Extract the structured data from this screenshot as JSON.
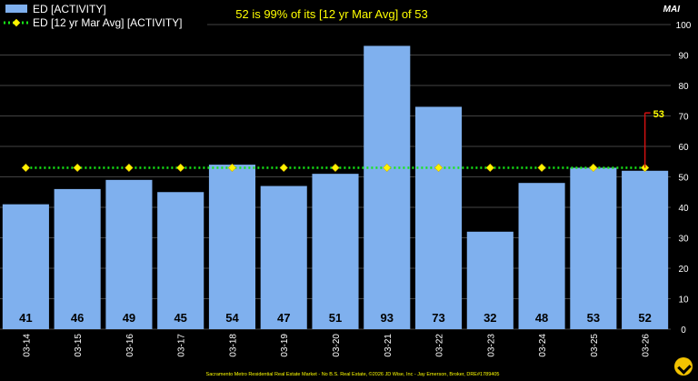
{
  "header": {
    "title": "52 is 99% of its [12 yr Mar Avg] of 53",
    "axis_unit": "MAI"
  },
  "footer": {
    "credit": "Sacramento Metro Residential Real Estate Market - No B.S. Real Estate, ©2026 JD Wise, Inc - Jay Emerson, Broker, DRE#1789405"
  },
  "legend": {
    "items": [
      {
        "label": "ED [ACTIVITY]"
      },
      {
        "label": "ED [12 yr Mar Avg] [ACTIVITY]"
      }
    ]
  },
  "annotation": {
    "value": "53"
  },
  "colors": {
    "bar": "#7fb0ee",
    "avg_line": "#17e817",
    "avg_marker": "#fff200",
    "title": "#ffff00",
    "annotation": "#d01010",
    "annotation_text": "#ffff00",
    "grid": "#5a5a5a",
    "background": "#000000"
  },
  "chart_data": {
    "type": "bar",
    "categories": [
      "03-14",
      "03-15",
      "03-16",
      "03-17",
      "03-18",
      "03-19",
      "03-20",
      "03-21",
      "03-22",
      "03-23",
      "03-24",
      "03-25",
      "03-26"
    ],
    "series": [
      {
        "name": "ED [ACTIVITY]",
        "type": "bar",
        "values": [
          41,
          46,
          49,
          45,
          54,
          47,
          51,
          93,
          73,
          32,
          48,
          53,
          52
        ]
      },
      {
        "name": "ED [12 yr Mar Avg] [ACTIVITY]",
        "type": "line",
        "values": [
          53,
          53,
          53,
          53,
          53,
          53,
          53,
          53,
          53,
          53,
          53,
          53,
          53
        ]
      }
    ],
    "data_labels": [
      "41",
      "46",
      "49",
      "45",
      "54",
      "47",
      "51",
      "93",
      "73",
      "32",
      "48",
      "53",
      "52"
    ],
    "y_ticks": [
      0,
      10,
      20,
      30,
      40,
      50,
      60,
      70,
      80,
      90,
      100
    ],
    "ylim": [
      0,
      100
    ],
    "y_axis_position": "right",
    "grid": true,
    "legend_position": "top-left"
  }
}
